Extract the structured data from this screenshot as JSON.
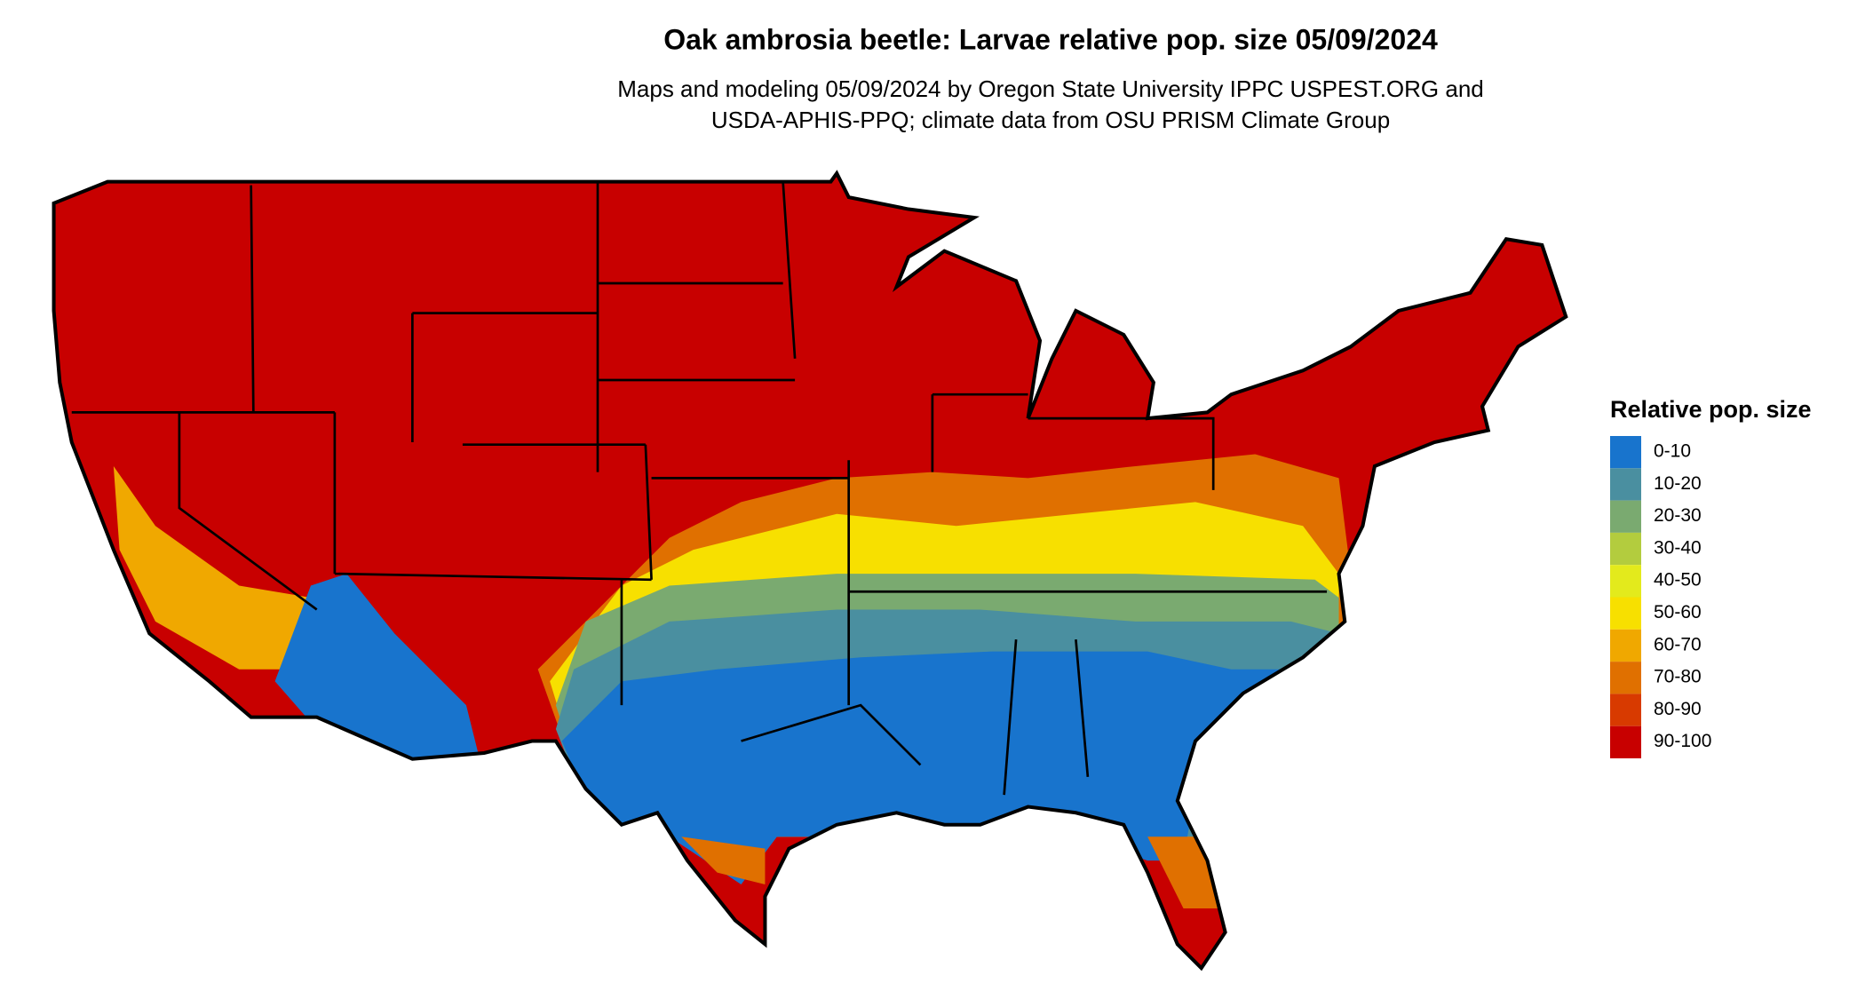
{
  "title": "Oak ambrosia beetle: Larvae relative pop. size 05/09/2024",
  "subtitle": [
    "Maps and modeling 05/09/2024 by Oregon State University IPPC USPEST.ORG and",
    "USDA-APHIS-PPQ; climate data from OSU PRISM Climate Group"
  ],
  "legend": {
    "title": "Relative pop. size",
    "items": [
      {
        "label": "0-10",
        "color": "#1874cd"
      },
      {
        "label": "10-20",
        "color": "#4a8fa0"
      },
      {
        "label": "20-30",
        "color": "#7aaa70"
      },
      {
        "label": "30-40",
        "color": "#b3cc3e"
      },
      {
        "label": "40-50",
        "color": "#e3ea1c"
      },
      {
        "label": "50-60",
        "color": "#f7e000"
      },
      {
        "label": "60-70",
        "color": "#f0a800"
      },
      {
        "label": "70-80",
        "color": "#e07000"
      },
      {
        "label": "80-90",
        "color": "#d83a00"
      },
      {
        "label": "90-100",
        "color": "#c80000"
      }
    ]
  }
}
